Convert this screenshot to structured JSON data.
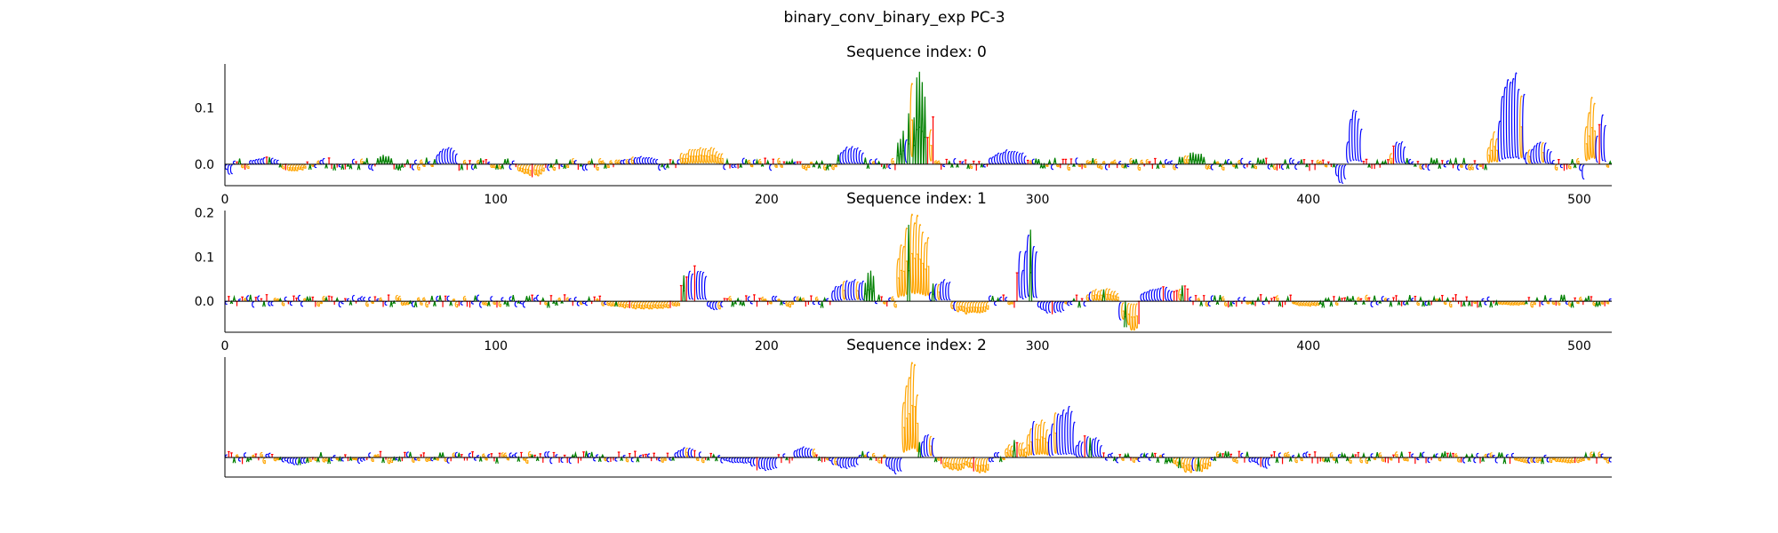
{
  "figure": {
    "suptitle": "binary_conv_binary_exp PC-3"
  },
  "colors": {
    "A": "#008000",
    "C": "#0000ff",
    "G": "#ffa500",
    "T": "#ff0000",
    "axis": "#000000"
  },
  "chart_data": [
    {
      "type": "sequence-logo",
      "title": "Sequence index: 0",
      "xlim": [
        0,
        512
      ],
      "ylim": [
        -0.038,
        0.178
      ],
      "xticks": [
        0,
        100,
        200,
        300,
        400,
        500
      ],
      "yticks": [
        0.0,
        0.1
      ],
      "ytick_labels": [
        "0.0",
        "0.1"
      ],
      "baseline": 0.0,
      "features": [
        {
          "x": [
            0,
            3
          ],
          "h": -0.018,
          "base": "C"
        },
        {
          "x": [
            10,
            20
          ],
          "h": 0.012,
          "base": "C"
        },
        {
          "x": [
            20,
            30
          ],
          "h": -0.012,
          "base": "G"
        },
        {
          "x": [
            56,
            62
          ],
          "h": 0.016,
          "base": "A"
        },
        {
          "x": [
            78,
            86
          ],
          "h": 0.03,
          "base": "C"
        },
        {
          "x": [
            108,
            118
          ],
          "h": -0.022,
          "base": "G"
        },
        {
          "x": [
            146,
            160
          ],
          "h": 0.014,
          "base": "C"
        },
        {
          "x": [
            168,
            184
          ],
          "h": 0.032,
          "base": "G"
        },
        {
          "x": [
            226,
            236
          ],
          "h": 0.032,
          "base": "C"
        },
        {
          "x": [
            248,
            252
          ],
          "h": 0.06,
          "base": "A"
        },
        {
          "x": [
            252,
            258
          ],
          "h": 0.178,
          "base": "G"
        },
        {
          "x": [
            254,
            259
          ],
          "h": 0.17,
          "base": "A"
        },
        {
          "x": [
            259,
            262
          ],
          "h": 0.08,
          "base": "T"
        },
        {
          "x": [
            282,
            296
          ],
          "h": 0.026,
          "base": "C"
        },
        {
          "x": [
            352,
            362
          ],
          "h": 0.02,
          "base": "A"
        },
        {
          "x": [
            410,
            414
          ],
          "h": -0.036,
          "base": "C"
        },
        {
          "x": [
            414,
            420
          ],
          "h": 0.098,
          "base": "C"
        },
        {
          "x": [
            430,
            436
          ],
          "h": 0.044,
          "base": "C"
        },
        {
          "x": [
            466,
            470
          ],
          "h": 0.06,
          "base": "G"
        },
        {
          "x": [
            470,
            480
          ],
          "h": 0.166,
          "base": "C"
        },
        {
          "x": [
            480,
            490
          ],
          "h": 0.04,
          "base": "C"
        },
        {
          "x": [
            500,
            502
          ],
          "h": -0.028,
          "base": "C"
        },
        {
          "x": [
            502,
            506
          ],
          "h": 0.124,
          "base": "G"
        },
        {
          "x": [
            506,
            510
          ],
          "h": 0.09,
          "base": "C"
        }
      ]
    },
    {
      "type": "sequence-logo",
      "title": "Sequence index: 1",
      "xlim": [
        0,
        512
      ],
      "ylim": [
        -0.07,
        0.205
      ],
      "xticks": [
        0,
        100,
        200,
        300,
        400,
        500
      ],
      "yticks": [
        0.0,
        0.1,
        0.2
      ],
      "ytick_labels": [
        "0.0",
        "0.1",
        "0.2"
      ],
      "baseline": 0.0,
      "features": [
        {
          "x": [
            140,
            168
          ],
          "h": -0.018,
          "base": "G"
        },
        {
          "x": [
            168,
            178
          ],
          "h": 0.076,
          "base": "C"
        },
        {
          "x": [
            178,
            184
          ],
          "h": -0.02,
          "base": "C"
        },
        {
          "x": [
            224,
            240
          ],
          "h": 0.05,
          "base": "C"
        },
        {
          "x": [
            236,
            240
          ],
          "h": 0.066,
          "base": "A"
        },
        {
          "x": [
            248,
            260
          ],
          "h": 0.205,
          "base": "G"
        },
        {
          "x": [
            260,
            270
          ],
          "h": 0.05,
          "base": "C"
        },
        {
          "x": [
            268,
            282
          ],
          "h": -0.03,
          "base": "G"
        },
        {
          "x": [
            292,
            296
          ],
          "h": 0.15,
          "base": "T"
        },
        {
          "x": [
            294,
            300
          ],
          "h": 0.154,
          "base": "C"
        },
        {
          "x": [
            300,
            310
          ],
          "h": -0.028,
          "base": "C"
        },
        {
          "x": [
            318,
            330
          ],
          "h": 0.03,
          "base": "G"
        },
        {
          "x": [
            330,
            338
          ],
          "h": -0.068,
          "base": "G"
        },
        {
          "x": [
            338,
            352
          ],
          "h": 0.032,
          "base": "C"
        },
        {
          "x": [
            350,
            356
          ],
          "h": 0.034,
          "base": "T"
        },
        {
          "x": [
            394,
            404
          ],
          "h": -0.012,
          "base": "G"
        },
        {
          "x": [
            470,
            480
          ],
          "h": -0.01,
          "base": "G"
        }
      ]
    },
    {
      "type": "sequence-logo",
      "title": "Sequence index: 2",
      "xlim": [
        0,
        512
      ],
      "ylim": [
        -0.07,
        0.36
      ],
      "xticks": [],
      "yticks": [],
      "ytick_labels": [],
      "baseline": 0.0,
      "features": [
        {
          "x": [
            22,
            30
          ],
          "h": -0.026,
          "base": "C"
        },
        {
          "x": [
            166,
            174
          ],
          "h": 0.036,
          "base": "C"
        },
        {
          "x": [
            184,
            196
          ],
          "h": -0.02,
          "base": "C"
        },
        {
          "x": [
            194,
            204
          ],
          "h": -0.05,
          "base": "C"
        },
        {
          "x": [
            210,
            218
          ],
          "h": 0.04,
          "base": "C"
        },
        {
          "x": [
            224,
            234
          ],
          "h": -0.04,
          "base": "C"
        },
        {
          "x": [
            244,
            250
          ],
          "h": -0.06,
          "base": "C"
        },
        {
          "x": [
            250,
            256
          ],
          "h": 0.36,
          "base": "G"
        },
        {
          "x": [
            256,
            262
          ],
          "h": 0.09,
          "base": "C"
        },
        {
          "x": [
            264,
            274
          ],
          "h": -0.05,
          "base": "G"
        },
        {
          "x": [
            274,
            282
          ],
          "h": -0.064,
          "base": "G"
        },
        {
          "x": [
            288,
            296
          ],
          "h": 0.06,
          "base": "G"
        },
        {
          "x": [
            296,
            304
          ],
          "h": 0.14,
          "base": "G"
        },
        {
          "x": [
            304,
            314
          ],
          "h": 0.19,
          "base": "C"
        },
        {
          "x": [
            314,
            324
          ],
          "h": 0.08,
          "base": "C"
        },
        {
          "x": [
            350,
            364
          ],
          "h": -0.056,
          "base": "G"
        },
        {
          "x": [
            380,
            386
          ],
          "h": -0.04,
          "base": "C"
        },
        {
          "x": [
            476,
            486
          ],
          "h": -0.02,
          "base": "G"
        },
        {
          "x": [
            490,
            502
          ],
          "h": -0.02,
          "base": "G"
        }
      ]
    }
  ]
}
